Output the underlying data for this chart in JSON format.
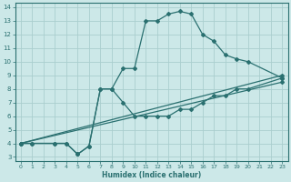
{
  "xlabel": "Humidex (Indice chaleur)",
  "xlim": [
    -0.5,
    23.5
  ],
  "ylim": [
    2.7,
    14.3
  ],
  "xticks": [
    0,
    1,
    2,
    3,
    4,
    5,
    6,
    7,
    8,
    9,
    10,
    11,
    12,
    13,
    14,
    15,
    16,
    17,
    18,
    19,
    20,
    21,
    22,
    23
  ],
  "yticks": [
    3,
    4,
    5,
    6,
    7,
    8,
    9,
    10,
    11,
    12,
    13,
    14
  ],
  "bg_color": "#cce8e8",
  "line_color": "#2a7070",
  "grid_color": "#aacece",
  "curves": [
    {
      "x": [
        0,
        1,
        3,
        4,
        5,
        5,
        6,
        7,
        8,
        9,
        10,
        11,
        12,
        13,
        14,
        15,
        16,
        17,
        18,
        19,
        20,
        23
      ],
      "y": [
        4,
        4,
        4,
        4,
        3.2,
        3.2,
        3.8,
        8,
        8,
        9.5,
        9.5,
        13,
        13,
        13.5,
        13.7,
        13.5,
        12,
        11.5,
        10.5,
        10.2,
        10,
        8.8
      ]
    },
    {
      "x": [
        0,
        23
      ],
      "y": [
        4,
        9
      ]
    },
    {
      "x": [
        0,
        23
      ],
      "y": [
        4,
        8.5
      ]
    },
    {
      "x": [
        0,
        1,
        3,
        4,
        5,
        6,
        7,
        8,
        9,
        10,
        11,
        12,
        13,
        14,
        15,
        16,
        17,
        18,
        19,
        20,
        23
      ],
      "y": [
        4,
        4,
        4,
        4,
        3.2,
        3.8,
        8,
        8,
        7,
        6,
        6,
        6,
        6,
        6.5,
        6.5,
        7,
        7.5,
        7.5,
        8,
        8,
        8.8
      ]
    }
  ]
}
